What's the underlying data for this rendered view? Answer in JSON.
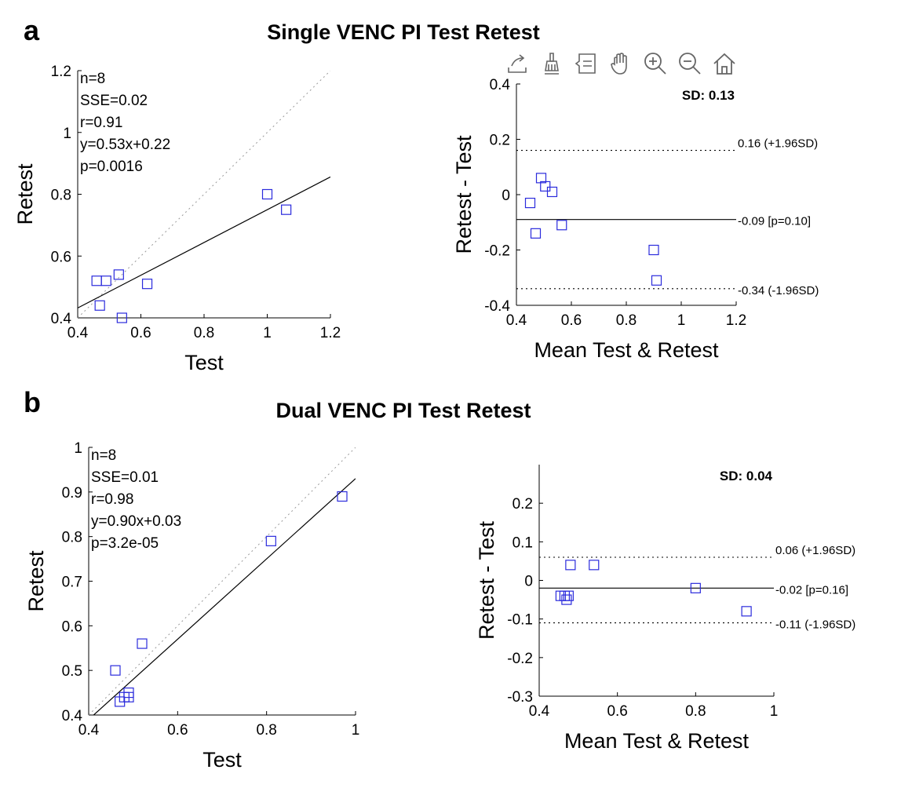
{
  "figure": {
    "panel_a": {
      "letter": "a",
      "title": "Single VENC PI Test Retest"
    },
    "panel_b": {
      "letter": "b",
      "title": "Dual VENC PI Test Retest"
    }
  },
  "toolbar": {
    "tools": [
      {
        "name": "export-icon"
      },
      {
        "name": "brush-icon"
      },
      {
        "name": "datatips-icon"
      },
      {
        "name": "pan-icon"
      },
      {
        "name": "zoom-in-icon"
      },
      {
        "name": "zoom-out-icon"
      },
      {
        "name": "home-icon"
      }
    ]
  },
  "chart_data": [
    {
      "id": "a_corr",
      "type": "scatter",
      "title": "",
      "xlabel": "Test",
      "ylabel": "Retest",
      "xlim": [
        0.4,
        1.2
      ],
      "ylim": [
        0.4,
        1.2
      ],
      "xticks": [
        "0.4",
        "0.6",
        "0.8",
        "1",
        "1.2"
      ],
      "xtick_values": [
        0.4,
        0.6,
        0.8,
        1.0,
        1.2
      ],
      "yticks": [
        "0.4",
        "0.6",
        "0.8",
        "1",
        "1.2"
      ],
      "ytick_values": [
        0.4,
        0.6,
        0.8,
        1.0,
        1.2
      ],
      "points": [
        [
          0.46,
          0.52
        ],
        [
          0.49,
          0.52
        ],
        [
          0.47,
          0.44
        ],
        [
          0.53,
          0.54
        ],
        [
          0.54,
          0.4
        ],
        [
          0.62,
          0.51
        ],
        [
          1.0,
          0.8
        ],
        [
          1.06,
          0.75
        ]
      ],
      "fit": {
        "slope": 0.53,
        "intercept": 0.22
      },
      "identity_line": true,
      "stats": [
        "n=8",
        "SSE=0.02",
        "r=0.91",
        "y=0.53x+0.22",
        "p=0.0016"
      ]
    },
    {
      "id": "a_ba",
      "type": "scatter",
      "title": "",
      "xlabel": "Mean Test & Retest",
      "ylabel": "Retest - Test",
      "xlim": [
        0.4,
        1.2
      ],
      "ylim": [
        -0.4,
        0.4
      ],
      "xticks": [
        "0.4",
        "0.6",
        "0.8",
        "1",
        "1.2"
      ],
      "xtick_values": [
        0.4,
        0.6,
        0.8,
        1.0,
        1.2
      ],
      "yticks": [
        "-0.4",
        "-0.2",
        "0",
        "0.2",
        "0.4"
      ],
      "ytick_values": [
        -0.4,
        -0.2,
        0.0,
        0.2,
        0.4
      ],
      "points": [
        [
          0.45,
          -0.03
        ],
        [
          0.47,
          -0.14
        ],
        [
          0.49,
          0.06
        ],
        [
          0.505,
          0.03
        ],
        [
          0.53,
          0.01
        ],
        [
          0.565,
          -0.11
        ],
        [
          0.9,
          -0.2
        ],
        [
          0.91,
          -0.31
        ]
      ],
      "sd_label": "SD: 0.13",
      "mean_line": {
        "value": -0.09,
        "label": "-0.09 [p=0.10]"
      },
      "upper_line": {
        "value": 0.16,
        "label": "0.16 (+1.96SD)"
      },
      "lower_line": {
        "value": -0.34,
        "label": "-0.34 (-1.96SD)"
      }
    },
    {
      "id": "b_corr",
      "type": "scatter",
      "title": "",
      "xlabel": "Test",
      "ylabel": "Retest",
      "xlim": [
        0.4,
        1.0
      ],
      "ylim": [
        0.4,
        1.0
      ],
      "xticks": [
        "0.4",
        "0.6",
        "0.8",
        "1"
      ],
      "xtick_values": [
        0.4,
        0.6,
        0.8,
        1.0
      ],
      "yticks": [
        "0.4",
        "0.5",
        "0.6",
        "0.7",
        "0.8",
        "0.9",
        "1"
      ],
      "ytick_values": [
        0.4,
        0.5,
        0.6,
        0.7,
        0.8,
        0.9,
        1.0
      ],
      "points": [
        [
          0.46,
          0.5
        ],
        [
          0.47,
          0.43
        ],
        [
          0.48,
          0.44
        ],
        [
          0.49,
          0.44
        ],
        [
          0.49,
          0.45
        ],
        [
          0.52,
          0.56
        ],
        [
          0.81,
          0.79
        ],
        [
          0.97,
          0.89
        ]
      ],
      "fit": {
        "slope": 0.9,
        "intercept": 0.03
      },
      "identity_line": true,
      "stats": [
        "n=8",
        "SSE=0.01",
        "r=0.98",
        "y=0.90x+0.03",
        "p=3.2e-05"
      ]
    },
    {
      "id": "b_ba",
      "type": "scatter",
      "title": "",
      "xlabel": "Mean Test & Retest",
      "ylabel": "Retest - Test",
      "xlim": [
        0.4,
        1.0
      ],
      "ylim": [
        -0.3,
        0.3
      ],
      "xticks": [
        "0.4",
        "0.6",
        "0.8",
        "1"
      ],
      "xtick_values": [
        0.4,
        0.6,
        0.8,
        1.0
      ],
      "yticks": [
        "-0.3",
        "-0.2",
        "-0.1",
        "0",
        "0.1",
        "0.2"
      ],
      "ytick_values": [
        -0.3,
        -0.2,
        -0.1,
        0.0,
        0.1,
        0.2
      ],
      "points": [
        [
          0.455,
          -0.04
        ],
        [
          0.465,
          -0.04
        ],
        [
          0.47,
          -0.05
        ],
        [
          0.475,
          -0.04
        ],
        [
          0.48,
          0.04
        ],
        [
          0.54,
          0.04
        ],
        [
          0.8,
          -0.02
        ],
        [
          0.93,
          -0.08
        ]
      ],
      "sd_label": "SD: 0.04",
      "mean_line": {
        "value": -0.02,
        "label": "-0.02 [p=0.16]"
      },
      "upper_line": {
        "value": 0.06,
        "label": "0.06 (+1.96SD)"
      },
      "lower_line": {
        "value": -0.11,
        "label": "-0.11 (-1.96SD)"
      }
    }
  ],
  "colors": {
    "marker": "#2b2bdc",
    "axis": "#000000",
    "identity": "#999999"
  }
}
